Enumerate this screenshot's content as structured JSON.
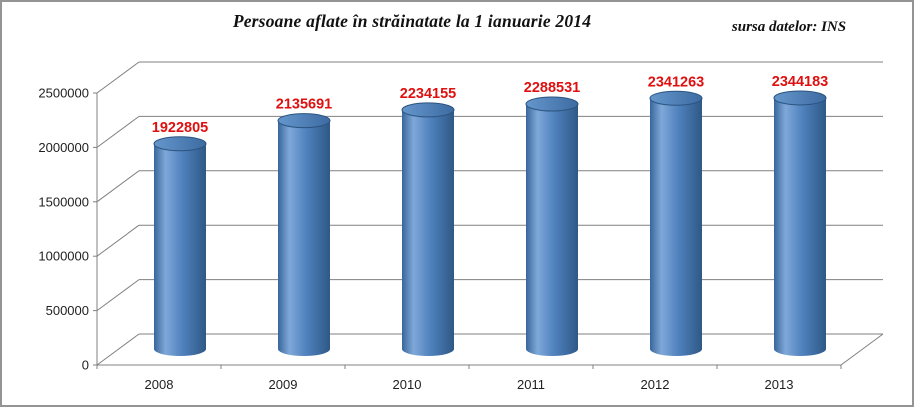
{
  "title": "Persoane aflate în străinatate la 1 ianuarie 2014",
  "source_note": "sursa datelor: INS",
  "chart_data": {
    "type": "bar",
    "subtype": "cylinder-3d",
    "title": "Persoane aflate în străinatate la 1 ianuarie 2014",
    "annotation": "sursa datelor: INS",
    "categories": [
      "2008",
      "2009",
      "2010",
      "2011",
      "2012",
      "2013"
    ],
    "values": [
      1922805,
      2135691,
      2234155,
      2288531,
      2341263,
      2344183
    ],
    "data_labels": [
      "1922805",
      "2135691",
      "2234155",
      "2288531",
      "2341263",
      "2344183"
    ],
    "xlabel": "",
    "ylabel": "",
    "ylim": [
      0,
      2500000
    ],
    "ytick_step": 500000,
    "ytick_labels": [
      "0",
      "500000",
      "1000000",
      "1500000",
      "2000000",
      "2500000"
    ],
    "grid": true,
    "legend": "none",
    "colors": {
      "bar_fill_main": "#4f81bd",
      "bar_fill_highlight": "#7fa8d9",
      "bar_fill_dark_left": "#38669b",
      "bar_fill_dark_right": "#2f5886",
      "bar_outline": "#2b5480",
      "bar_top_light": "#6496cc",
      "bar_top_dark": "#3d6ba2",
      "data_label": "#e01010",
      "axis_and_grid": "#808080",
      "tick_text": "#1f1f1f",
      "frame_border": "#949494",
      "background": "#ffffff"
    }
  }
}
